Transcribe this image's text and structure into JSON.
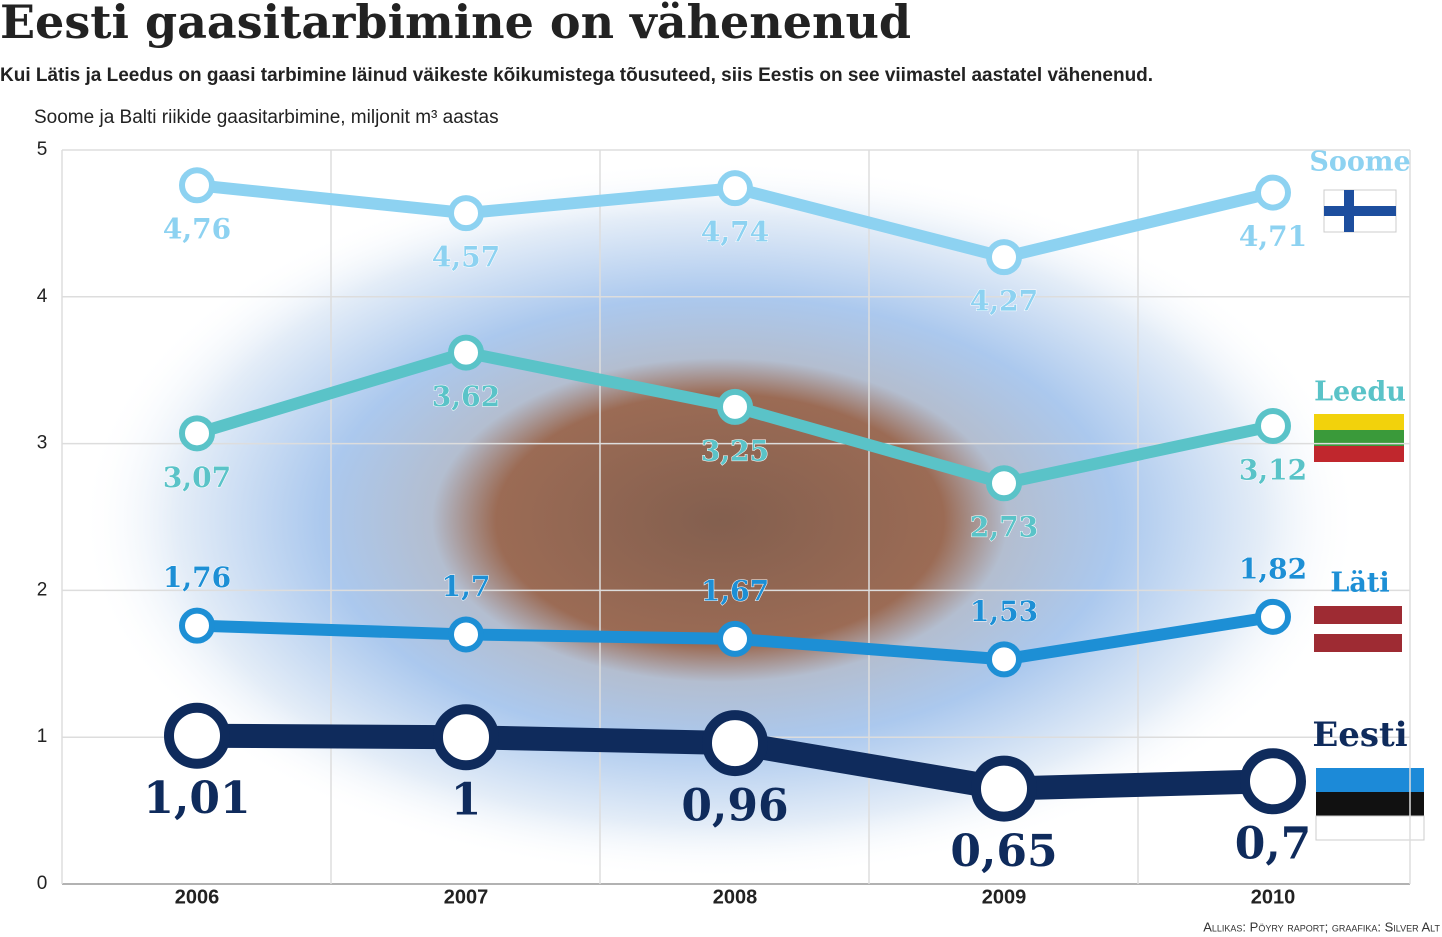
{
  "chart_data": {
    "type": "line",
    "title": "Eesti gaasitarbimine on vähenenud",
    "subtitle": "Kui Lätis ja Leedus on gaasi tarbimine läinud väikeste kõikumistega tõusuteed, siis Eestis on see viimastel aastatel vähenenud.",
    "y_label": "Soome ja Balti riikide gaasitarbimine, miljonit m³ aastas",
    "source": "Allikas: Pöyry raport; graafika: Silver Alt",
    "categories": [
      "2006",
      "2007",
      "2008",
      "2009",
      "2010"
    ],
    "ylim": [
      0,
      5
    ],
    "yticks": [
      0,
      1,
      2,
      3,
      4,
      5
    ],
    "grid": true,
    "series": [
      {
        "name": "Soome",
        "color": "#8dd2f1",
        "values": [
          4.76,
          4.57,
          4.74,
          4.27,
          4.71
        ],
        "value_labels": [
          "4,76",
          "4,57",
          "4,74",
          "4,27",
          "4,71"
        ]
      },
      {
        "name": "Leedu",
        "color": "#5ac3c8",
        "values": [
          3.07,
          3.62,
          3.25,
          2.73,
          3.12
        ],
        "value_labels": [
          "3,07",
          "3,62",
          "3,25",
          "2,73",
          "3,12"
        ]
      },
      {
        "name": "Läti",
        "color": "#1d8fd5",
        "values": [
          1.76,
          1.7,
          1.67,
          1.53,
          1.82
        ],
        "value_labels": [
          "1,76",
          "1,7",
          "1,67",
          "1,53",
          "1,82"
        ]
      },
      {
        "name": "Eesti",
        "color": "#0f2b5c",
        "values": [
          1.01,
          1,
          0.96,
          0.65,
          0.7
        ],
        "value_labels": [
          "1,01",
          "1",
          "0,96",
          "0,65",
          "0,7"
        ]
      }
    ]
  }
}
